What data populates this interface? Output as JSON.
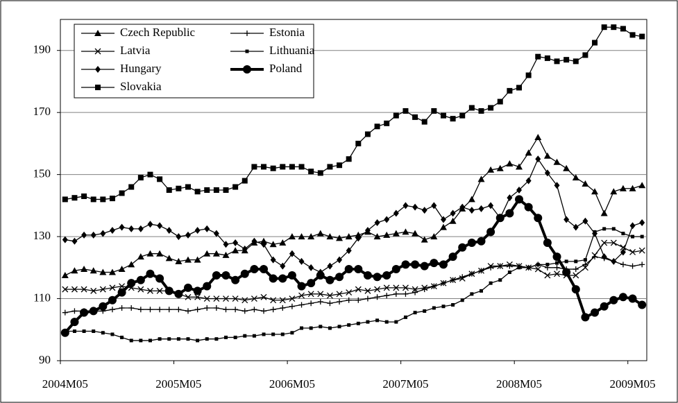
{
  "chart_data": {
    "type": "line",
    "categories": [
      "2004M05",
      null,
      null,
      null,
      null,
      null,
      null,
      null,
      null,
      null,
      null,
      null,
      "2005M05",
      null,
      null,
      null,
      null,
      null,
      null,
      null,
      null,
      null,
      null,
      null,
      "2006M05",
      null,
      null,
      null,
      null,
      null,
      null,
      null,
      null,
      null,
      null,
      null,
      "2007M05",
      null,
      null,
      null,
      null,
      null,
      null,
      null,
      null,
      null,
      null,
      null,
      "2008M05",
      null,
      null,
      null,
      null,
      null,
      null,
      null,
      null,
      null,
      null,
      null,
      "2009M05",
      null
    ],
    "ylim": [
      90,
      200
    ],
    "yticks": [
      90,
      110,
      130,
      150,
      170,
      190
    ],
    "grid": true,
    "legend": "top-left",
    "series": [
      {
        "name": "Czech Republic",
        "color": "#000000",
        "marker": "triangle",
        "width": 1.3,
        "values": [
          117.5,
          119,
          119.5,
          119,
          118.5,
          118.5,
          119.5,
          121,
          123.5,
          124.5,
          124.5,
          123,
          122,
          122.5,
          122.5,
          124.5,
          124.5,
          124,
          125.5,
          125.5,
          128,
          128.5,
          127.5,
          128,
          130,
          130,
          130,
          131,
          130,
          129.5,
          130,
          130.5,
          131.5,
          130,
          130.5,
          131,
          131.5,
          131,
          129,
          130,
          133,
          135,
          139,
          142,
          148.5,
          151.5,
          152,
          153.5,
          152.5,
          157,
          162,
          156,
          154,
          152,
          149,
          147,
          144.5,
          137.5,
          144.5,
          145.5,
          145.5,
          146.5
        ]
      },
      {
        "name": "Estonia",
        "color": "#000000",
        "marker": "plus",
        "width": 1.3,
        "values": [
          105.5,
          106,
          106,
          106,
          106,
          106.5,
          107,
          107,
          106.5,
          106.5,
          106.5,
          106.5,
          106.5,
          106,
          106.5,
          107,
          107,
          106.5,
          106.5,
          106,
          106.5,
          106,
          106.5,
          107,
          107.5,
          108,
          108.5,
          109,
          108.5,
          109,
          109.5,
          109.5,
          110,
          110.5,
          111,
          111.5,
          111.5,
          112,
          113,
          114,
          115,
          116,
          117,
          118,
          119,
          120,
          120.5,
          120.5,
          120.5,
          120,
          121,
          120,
          120,
          119.5,
          119.5,
          121,
          123.5,
          123,
          122,
          121,
          120.5,
          121
        ]
      },
      {
        "name": "Latvia",
        "color": "#000000",
        "marker": "cross",
        "width": 1.3,
        "values": [
          113,
          113,
          113,
          112.5,
          113,
          113.5,
          114,
          113.5,
          113,
          112.5,
          112.5,
          112.5,
          111.5,
          110.5,
          110.5,
          110,
          110,
          110,
          110,
          109.5,
          110,
          110.5,
          109.5,
          109.5,
          110,
          111,
          111.5,
          111.5,
          111,
          111.5,
          112,
          113,
          112.5,
          113,
          113.5,
          113.5,
          113.5,
          113,
          113.5,
          114,
          115,
          116,
          116.5,
          118,
          119,
          120.5,
          120.5,
          121,
          120.5,
          120,
          119.5,
          117.5,
          118,
          117.5,
          117.5,
          120,
          124,
          128,
          128,
          126.5,
          125,
          125.5
        ]
      },
      {
        "name": "Lithuania",
        "color": "#000000",
        "marker": "small-square",
        "width": 1.3,
        "values": [
          99.5,
          99.5,
          99.5,
          99.5,
          99,
          98.5,
          97.5,
          96.5,
          96.5,
          96.5,
          97,
          97,
          97,
          97,
          96.5,
          97,
          97,
          97.5,
          97.5,
          98,
          98,
          98.5,
          98.5,
          98.5,
          99,
          100.5,
          100.5,
          101,
          100.5,
          101,
          101.5,
          102,
          102.5,
          103,
          102.5,
          102.5,
          104,
          105.5,
          106,
          107,
          107.5,
          108,
          109.5,
          111.5,
          112.5,
          115,
          116,
          118.5,
          120,
          120,
          121,
          121,
          121.5,
          122,
          122,
          122.5,
          131.5,
          132.5,
          132.5,
          131,
          130,
          130
        ]
      },
      {
        "name": "Hungary",
        "color": "#000000",
        "marker": "diamond",
        "width": 1.3,
        "values": [
          129,
          128.5,
          130.5,
          130.5,
          131,
          132,
          133,
          132.5,
          132.5,
          134,
          133.5,
          132,
          130,
          130.5,
          132,
          132.5,
          131,
          127.5,
          128,
          126,
          128.5,
          127.5,
          122.5,
          120.5,
          124.5,
          122,
          120,
          118.5,
          120.5,
          122.5,
          125.5,
          129.5,
          132,
          134.5,
          135.5,
          137.5,
          140,
          139.5,
          138.5,
          140,
          135.5,
          137.5,
          139.5,
          138.5,
          139,
          140,
          136,
          142.5,
          145,
          148,
          155,
          150.5,
          146.5,
          135.5,
          133,
          135,
          131,
          123.5,
          122,
          125,
          133.5,
          134.5
        ]
      },
      {
        "name": "Poland",
        "color": "#000000",
        "marker": "circle",
        "width": 4,
        "values": [
          99,
          102.5,
          105.5,
          106,
          107.5,
          109.5,
          112,
          115,
          116,
          118,
          116.5,
          112.5,
          111.5,
          113.5,
          112.5,
          114,
          117.5,
          117.5,
          116,
          118,
          119.5,
          119.5,
          116.5,
          116.5,
          117.5,
          114,
          115,
          117.5,
          116,
          117,
          119.5,
          119.5,
          117.5,
          117,
          117.5,
          119.5,
          121,
          121,
          120.5,
          121.5,
          121,
          123.5,
          126.5,
          128,
          128.5,
          131.5,
          136,
          137.5,
          142,
          139.5,
          136,
          128,
          123.5,
          118.5,
          113,
          104,
          105.5,
          107.5,
          109.5,
          110.5,
          110,
          108
        ]
      },
      {
        "name": "Slovakia",
        "color": "#000000",
        "marker": "square",
        "width": 1.3,
        "values": [
          142,
          142.5,
          143,
          142,
          142,
          142.3,
          144,
          146,
          149,
          150,
          148.5,
          145,
          145.5,
          146,
          144.5,
          145,
          145,
          145,
          146,
          148,
          152.5,
          152.5,
          152,
          152.5,
          152.5,
          152.5,
          151,
          150.5,
          152.5,
          153,
          155,
          160,
          163,
          165.5,
          166.5,
          169,
          170.5,
          168.5,
          167,
          170.5,
          169,
          168,
          169,
          171.5,
          170.5,
          171.5,
          173.5,
          177,
          178,
          182,
          188,
          187.5,
          186.5,
          187,
          186.5,
          188.5,
          192.5,
          197.5,
          197.5,
          197,
          195,
          194.5
        ]
      }
    ]
  }
}
